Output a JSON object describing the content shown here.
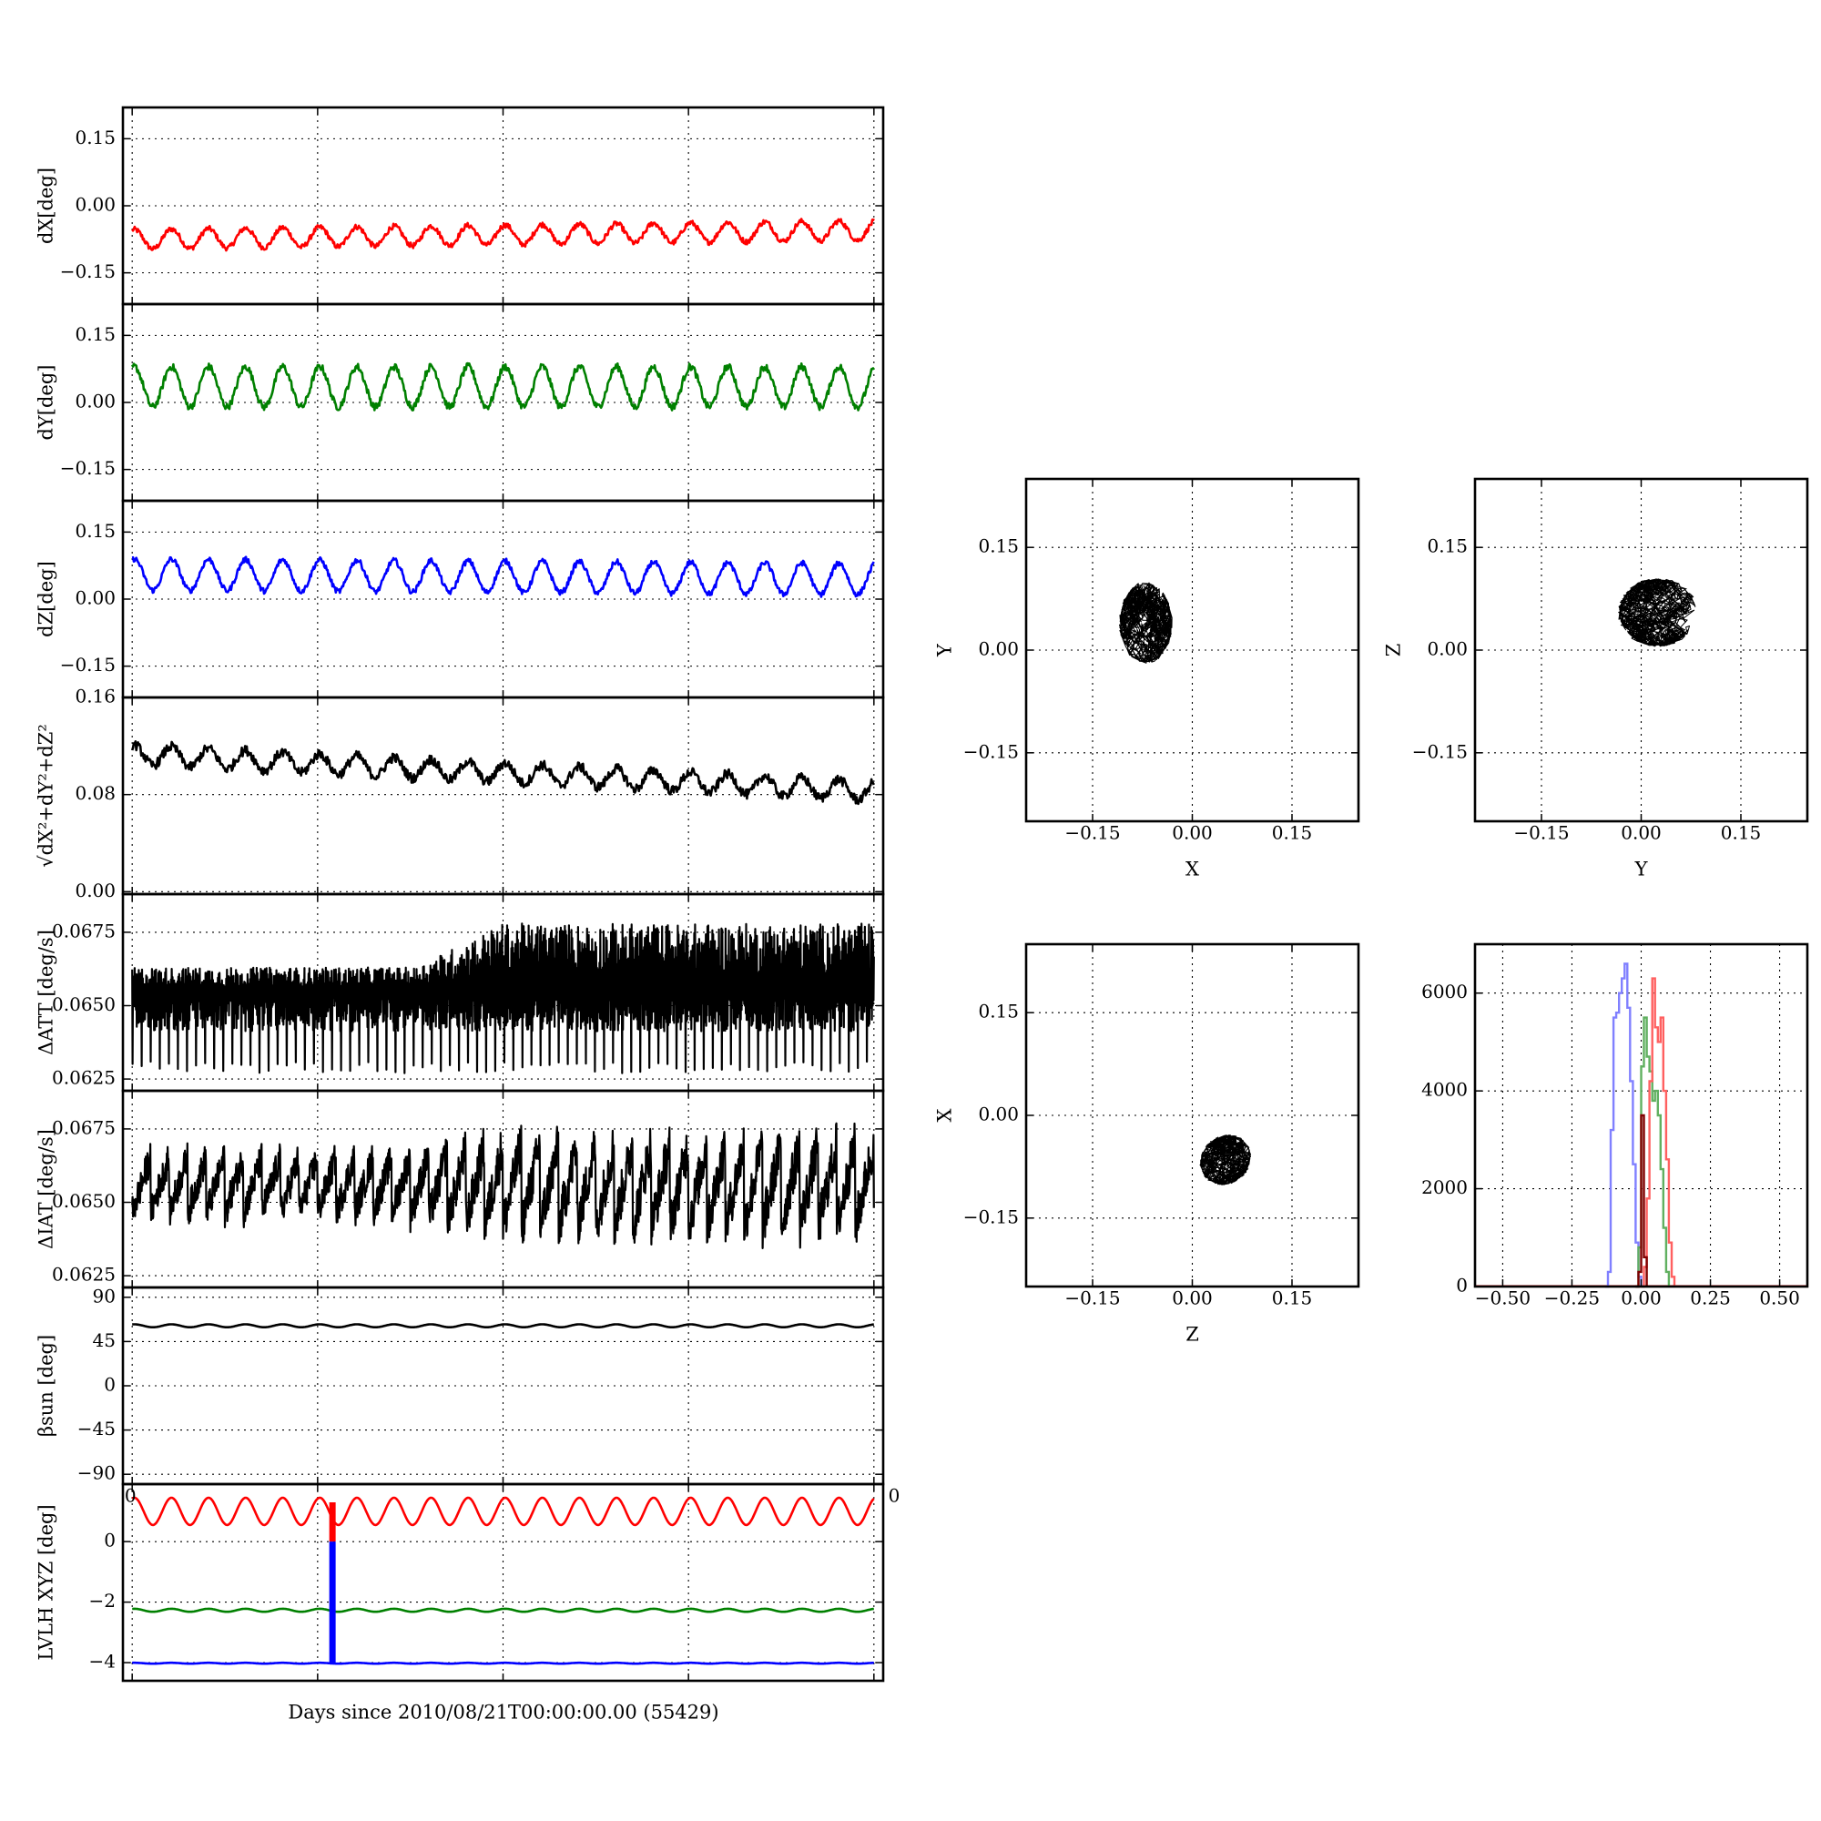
{
  "chart_data": [
    {
      "type": "line",
      "ylabel": "dX[deg]",
      "ylim": [
        -0.22,
        0.22
      ],
      "yticks": [
        "0.15",
        "0.00",
        "−0.15"
      ],
      "ytick_values": [
        0.15,
        0.0,
        -0.15
      ],
      "xlim": [
        -0.05,
        4.05
      ],
      "grid": true,
      "series": [
        {
          "color": "#ff0000",
          "x": [
            0,
            4
          ],
          "mean": -0.075,
          "wave_amplitude": 0.022,
          "wave_cycles": 20,
          "trend": 0.02,
          "noise": 0.006
        }
      ]
    },
    {
      "type": "line",
      "ylabel": "dY[deg]",
      "ylim": [
        -0.22,
        0.22
      ],
      "yticks": [
        "0.15",
        "0.00",
        "−0.15"
      ],
      "ytick_values": [
        0.15,
        0.0,
        -0.15
      ],
      "xlim": [
        -0.05,
        4.05
      ],
      "grid": true,
      "series": [
        {
          "color": "#008000",
          "x": [
            0,
            4
          ],
          "mean": 0.035,
          "wave_amplitude": 0.045,
          "wave_cycles": 20,
          "trend": 0.0,
          "noise": 0.008
        }
      ]
    },
    {
      "type": "line",
      "ylabel": "dZ[deg]",
      "ylim": [
        -0.22,
        0.22
      ],
      "yticks": [
        "0.15",
        "0.00",
        "−0.15"
      ],
      "ytick_values": [
        0.15,
        0.0,
        -0.15
      ],
      "xlim": [
        -0.05,
        4.05
      ],
      "grid": true,
      "series": [
        {
          "color": "#0000ff",
          "x": [
            0,
            4
          ],
          "mean": 0.055,
          "wave_amplitude": 0.035,
          "wave_cycles": 20,
          "trend": -0.01,
          "noise": 0.006
        }
      ]
    },
    {
      "type": "line",
      "ylabel": "√dX²+dY²+dZ²",
      "ylim": [
        -0.002,
        0.16
      ],
      "yticks": [
        "0.16",
        "0.08",
        "0.00"
      ],
      "ytick_values": [
        0.16,
        0.08,
        0.0
      ],
      "xlim": [
        -0.05,
        4.05
      ],
      "grid": true,
      "series": [
        {
          "color": "#000000",
          "x": [
            0,
            4
          ],
          "mean": 0.113,
          "wave_amplitude": 0.008,
          "wave_cycles": 20,
          "trend": -0.03,
          "noise": 0.004
        }
      ]
    },
    {
      "type": "line",
      "ylabel": "ΔATT [deg/s]",
      "ylim": [
        0.0621,
        0.0688
      ],
      "yticks": [
        "0.0675",
        "0.0650",
        "0.0625"
      ],
      "ytick_values": [
        0.0675,
        0.065,
        0.0625
      ],
      "xlim": [
        -0.05,
        4.05
      ],
      "grid": true,
      "series": [
        {
          "color": "#000000",
          "x": [
            0,
            4
          ],
          "mean": 0.0653,
          "band_low": 0.0627,
          "band_high": 0.0663,
          "band_high_late": 0.0678
        }
      ]
    },
    {
      "type": "line",
      "ylabel": "ΔIAT [deg/s]",
      "ylim": [
        0.0621,
        0.0688
      ],
      "yticks": [
        "0.0675",
        "0.0650",
        "0.0625"
      ],
      "ytick_values": [
        0.0675,
        0.065,
        0.0625
      ],
      "xlim": [
        -0.05,
        4.05
      ],
      "grid": true,
      "series": [
        {
          "color": "#000000",
          "x": [
            0,
            4
          ],
          "mean": 0.0656,
          "sawtooth_amplitude": 0.0012,
          "sawtooth_cycles": 40,
          "amp_growth": 0.0006
        }
      ]
    },
    {
      "type": "line",
      "ylabel": "βsun [deg]",
      "ylim": [
        -100,
        100
      ],
      "yticks": [
        "90",
        "45",
        "0",
        "−45",
        "−90"
      ],
      "ytick_values": [
        90,
        45,
        0,
        -45,
        -90
      ],
      "xlim": [
        -0.05,
        4.05
      ],
      "grid": true,
      "series": [
        {
          "color": "#000000",
          "x": [
            0,
            4
          ],
          "mean": 61,
          "wave_amplitude": 1.5,
          "wave_cycles": 20
        }
      ]
    },
    {
      "type": "line",
      "ylabel": "LVLH XYZ [deg]",
      "ylim": [
        -4.6,
        1.9
      ],
      "yticks": [
        "0",
        "−2",
        "−4"
      ],
      "ytick_values": [
        0,
        -2,
        -4
      ],
      "xlim": [
        -0.05,
        4.05
      ],
      "xticks": [
        "0",
        "0"
      ],
      "grid": true,
      "xlabel": "Days since 2010/08/21T00:00:00.00 (55429)",
      "series": [
        {
          "color": "#ff0000",
          "x": [
            0,
            4
          ],
          "mean": 1.0,
          "wave_amplitude": 0.45,
          "wave_cycles": 20
        },
        {
          "color": "#008000",
          "x": [
            0,
            4
          ],
          "mean": -2.27,
          "wave_amplitude": 0.05,
          "wave_cycles": 20
        },
        {
          "color": "#0000ff",
          "x": [
            0,
            4
          ],
          "mean": -4.02,
          "wave_amplitude": 0.015,
          "wave_cycles": 20
        }
      ],
      "spike": {
        "x": 1.08,
        "red_from": 1.3,
        "red_to": 0.0,
        "blue_from": 0.0,
        "blue_to": -4.0
      }
    },
    {
      "type": "scatter",
      "xlabel": "X",
      "ylabel": "Y",
      "xlim": [
        -0.25,
        0.25
      ],
      "ylim": [
        -0.25,
        0.25
      ],
      "xticks": [
        "−0.15",
        "0.00",
        "0.15"
      ],
      "yticks": [
        "0.15",
        "0.00",
        "−0.15"
      ],
      "tick_values": [
        -0.15,
        0.0,
        0.15
      ],
      "grid": true,
      "cloud": {
        "color": "#000000",
        "cx": -0.07,
        "cy": 0.04,
        "rx": 0.04,
        "ry": 0.06
      }
    },
    {
      "type": "scatter",
      "xlabel": "Y",
      "ylabel": "Z",
      "xlim": [
        -0.25,
        0.25
      ],
      "ylim": [
        -0.25,
        0.25
      ],
      "xticks": [
        "−0.15",
        "0.00",
        "0.15"
      ],
      "yticks": [
        "0.15",
        "0.00",
        "−0.15"
      ],
      "tick_values": [
        -0.15,
        0.0,
        0.15
      ],
      "grid": true,
      "cloud": {
        "color": "#000000",
        "cx": 0.025,
        "cy": 0.055,
        "rx": 0.06,
        "ry": 0.05
      }
    },
    {
      "type": "scatter",
      "xlabel": "Z",
      "ylabel": "X",
      "xlim": [
        -0.25,
        0.25
      ],
      "ylim": [
        -0.25,
        0.25
      ],
      "xticks": [
        "−0.15",
        "0.00",
        "0.15"
      ],
      "yticks": [
        "0.15",
        "0.00",
        "−0.15"
      ],
      "tick_values": [
        -0.15,
        0.0,
        0.15
      ],
      "grid": true,
      "cloud": {
        "color": "#000000",
        "cx": 0.05,
        "cy": -0.065,
        "rx": 0.04,
        "ry": 0.035,
        "tilt": 0.6
      }
    },
    {
      "type": "line",
      "title": "",
      "xlim": [
        -0.6,
        0.6
      ],
      "ylim": [
        0,
        7000
      ],
      "xticks": [
        "−0.50",
        "−0.25",
        "0.00",
        "0.25",
        "0.50"
      ],
      "xtick_values": [
        -0.5,
        -0.25,
        0.0,
        0.25,
        0.5
      ],
      "yticks": [
        "6000",
        "4000",
        "2000",
        "0"
      ],
      "ytick_values": [
        6000,
        4000,
        2000,
        0
      ],
      "grid": true,
      "series": [
        {
          "color": "#8080ff",
          "x": [
            -0.13,
            -0.12,
            -0.11,
            -0.1,
            -0.09,
            -0.08,
            -0.07,
            -0.06,
            -0.05,
            -0.04,
            -0.03,
            -0.02,
            -0.01,
            0.0
          ],
          "values": [
            0,
            300,
            3200,
            5500,
            5600,
            6000,
            6300,
            6600,
            5700,
            4200,
            2500,
            900,
            200,
            0
          ]
        },
        {
          "color": "#60b060",
          "x": [
            -0.02,
            -0.01,
            0.0,
            0.01,
            0.02,
            0.03,
            0.04,
            0.05,
            0.06,
            0.07,
            0.08,
            0.09,
            0.1
          ],
          "values": [
            0,
            800,
            4500,
            5500,
            4700,
            4400,
            3800,
            4000,
            3500,
            2400,
            1200,
            300,
            0
          ]
        },
        {
          "color": "#ff6060",
          "x": [
            0.0,
            0.01,
            0.02,
            0.03,
            0.04,
            0.05,
            0.06,
            0.07,
            0.08,
            0.09,
            0.1,
            0.11,
            0.12
          ],
          "values": [
            0,
            400,
            1800,
            4200,
            6300,
            5300,
            5000,
            5500,
            4000,
            2600,
            900,
            200,
            0
          ]
        },
        {
          "color": "#800000",
          "x": [
            -0.02,
            -0.01,
            0.0,
            0.01,
            0.02
          ],
          "values": [
            0,
            300,
            3500,
            600,
            0
          ]
        }
      ]
    }
  ]
}
